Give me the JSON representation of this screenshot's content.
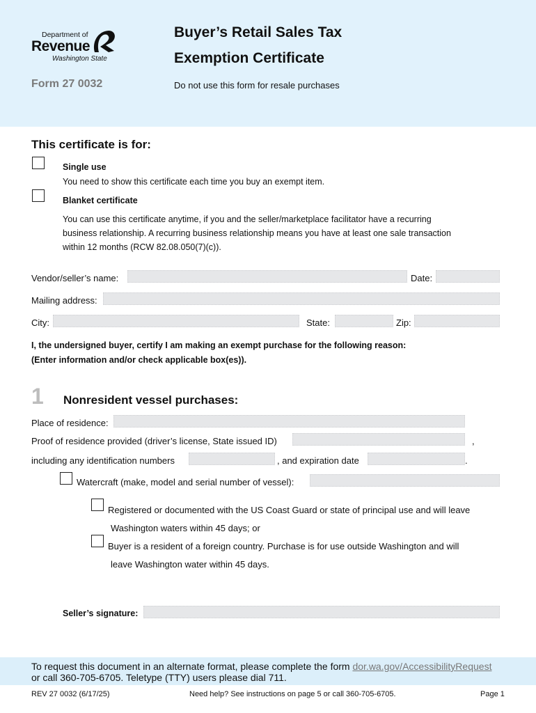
{
  "header": {
    "logo": {
      "line1": "Department of",
      "line2": "Revenue",
      "line3": "Washington State"
    },
    "form_number": "Form 27 0032",
    "title_line1": "Buyer’s Retail Sales Tax",
    "title_line2": "Exemption Certificate",
    "subtitle": "Do not use this form for resale purchases"
  },
  "certificate": {
    "heading": "This certificate is for:",
    "options": [
      {
        "label": "Single use",
        "checked": false,
        "description": [
          "You need to show this certificate each time you buy an exempt item."
        ]
      },
      {
        "label": "Blanket certificate",
        "checked": false,
        "description": [
          "You can use this certificate anytime, if you and the seller/marketplace facilitator have a recurring",
          "business relationship. A recurring business relationship means you have at least one sale transaction",
          "within 12 months (RCW 82.08.050(7)(c))."
        ]
      }
    ]
  },
  "vendor": {
    "name_label": "Vendor/seller’s name:",
    "name_value": "",
    "date_label": "Date:",
    "date_value": "",
    "address_label": "Mailing address:",
    "address_value": "",
    "city_label": "City:",
    "city_value": "",
    "state_label": "State:",
    "state_value": "",
    "zip_label": "Zip:",
    "zip_value": ""
  },
  "certify": {
    "line1": "I, the undersigned buyer, certify I am making an exempt purchase for the following reason:",
    "line2": "(Enter information and/or check applicable box(es))."
  },
  "section1": {
    "number": "1",
    "heading": "Nonresident vessel purchases:",
    "residence_label": "Place of residence:",
    "proof_label": "Proof of residence provided (driver’s license, State issued ID)",
    "proof_comma": ",",
    "id_label": "including any identification numbers",
    "expiration_label": ", and expiration date",
    "period": ".",
    "watercraft_label": "Watercraft (make, model and serial number of vessel):",
    "options": [
      {
        "checked": false,
        "line1": "Registered or documented with the US Coast Guard or state of principal use and will leave",
        "line2": "Washington waters within 45 days; or"
      },
      {
        "checked": false,
        "line1": "Buyer is a resident of a foreign country. Purchase is for use outside Washington and will",
        "line2": "leave Washington water within 45 days."
      }
    ],
    "signature_label": "Seller’s signature:"
  },
  "footer": {
    "request_text": "To request this document in an alternate format, please complete the form ",
    "request_link": "dor.wa.gov/AccessibilityRequest",
    "request_line2": "or call 360-705-6705. Teletype (TTY) users please dial 711.",
    "rev": "REV 27 0032  (6/17/25)",
    "help": "Need help? See instructions on page 5 or call 360-705-6705.",
    "page": "Page 1"
  },
  "colors": {
    "header_bg": "#e1f2fc",
    "footer_band": "#dceffa",
    "field_bg": "#e6e7e9",
    "form_number": "#7a7a7a"
  }
}
